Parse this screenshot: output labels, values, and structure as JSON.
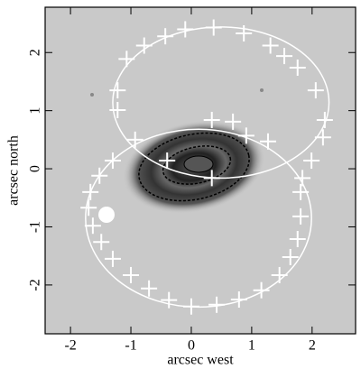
{
  "chart_data": {
    "type": "scatter",
    "xlabel": "arcsec west",
    "ylabel": "arcsec north",
    "xlim": [
      -2.42,
      2.72
    ],
    "ylim": [
      -2.84,
      2.78
    ],
    "xticks": [
      -2,
      -1,
      0,
      1,
      2
    ],
    "yticks": [
      -2,
      -1,
      0,
      1,
      2
    ],
    "color": "#ffffff",
    "x": [
      -0.78,
      -0.43,
      -0.1,
      0.37,
      0.87,
      1.31,
      1.54,
      1.76,
      2.06,
      2.21,
      2.18,
      1.99,
      -1.07,
      -1.22,
      -1.22,
      -0.93,
      -0.4,
      0.34,
      0.34,
      0.69,
      0.91,
      1.27,
      -1.3,
      -1.52,
      -1.67,
      -1.7,
      -1.63,
      -1.49,
      -1.3,
      -1.0,
      -0.7,
      -0.37,
      0,
      0.42,
      0.79,
      1.16,
      1.46,
      1.64,
      1.76,
      1.81,
      1.81,
      1.84
    ],
    "values": [
      2.12,
      2.28,
      2.4,
      2.43,
      2.33,
      2.12,
      1.94,
      1.74,
      1.35,
      0.84,
      0.54,
      0.14,
      1.89,
      1.35,
      1.01,
      0.5,
      0.14,
      -0.16,
      0.84,
      0.81,
      0.57,
      0.47,
      0.14,
      -0.12,
      -0.4,
      -0.67,
      -0.98,
      -1.26,
      -1.55,
      -1.83,
      -2.06,
      -2.26,
      -2.37,
      -2.34,
      -2.25,
      -2.09,
      -1.83,
      -1.52,
      -1.21,
      -0.82,
      -0.4,
      -0.16
    ],
    "rings": [
      {
        "center": [
          0.49,
          1.14
        ],
        "radii": [
          1.79,
          1.3
        ]
      },
      {
        "center": [
          0.12,
          -0.85
        ],
        "radii": [
          1.87,
          1.53
        ]
      }
    ]
  }
}
